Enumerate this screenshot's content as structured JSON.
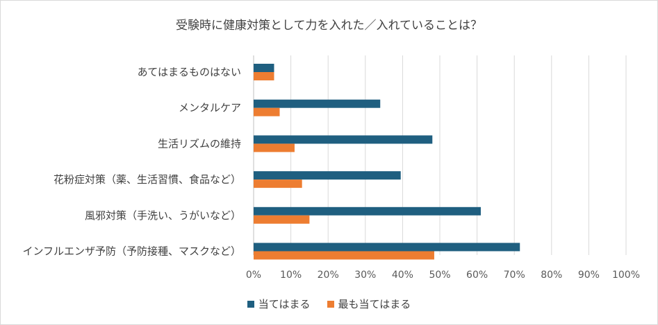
{
  "chart_data": {
    "type": "bar",
    "orientation": "horizontal",
    "title": "受験時に健康対策として力を入れた／入れていることは？",
    "categories": [
      "あてはまるものはない",
      "メンタルケア",
      "生活リズムの維持",
      "花粉症対策（薬、生活習慣、食品など）",
      "風邪対策（手洗い、うがいなど）",
      "インフルエンザ予防（予防接種、マスクなど）"
    ],
    "series": [
      {
        "name": "当てはまる",
        "color": "#1f5f80",
        "values": [
          5.5,
          34,
          48,
          39.5,
          61,
          71.5
        ]
      },
      {
        "name": "最も当てはまる",
        "color": "#ed7d31",
        "values": [
          5.5,
          7,
          11,
          13,
          15,
          48.5
        ]
      }
    ],
    "xlim": [
      0,
      100
    ],
    "xticks": [
      "0%",
      "10%",
      "20%",
      "30%",
      "40%",
      "50%",
      "60%",
      "70%",
      "80%",
      "90%",
      "100%"
    ],
    "grid": true,
    "legend_position": "bottom"
  }
}
